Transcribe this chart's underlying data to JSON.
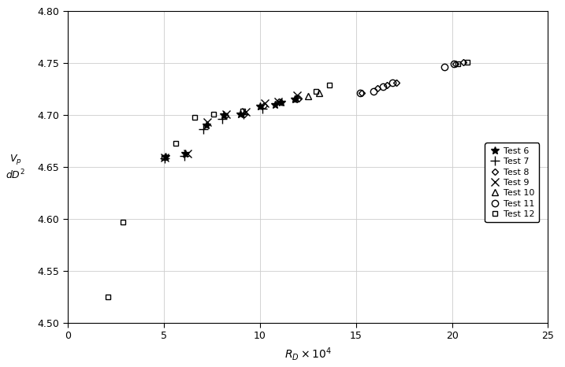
{
  "title": "",
  "xlabel": "$R_D \\times 10^4$",
  "xlim": [
    0,
    25
  ],
  "ylim": [
    4.5,
    4.8
  ],
  "xticks": [
    0,
    5,
    10,
    15,
    20,
    25
  ],
  "yticks": [
    4.5,
    4.55,
    4.6,
    4.65,
    4.7,
    4.75,
    4.8
  ],
  "series": [
    {
      "label": "Test 6",
      "marker": "*",
      "markersize": 7,
      "mfc": "black",
      "mec": "black",
      "x": [
        5.1,
        6.1,
        7.2,
        8.1,
        9.0,
        10.0,
        10.8,
        11.1,
        11.8
      ],
      "y": [
        4.66,
        4.663,
        4.69,
        4.7,
        4.701,
        4.708,
        4.71,
        4.712,
        4.715
      ]
    },
    {
      "label": "Test 7",
      "marker": "+",
      "markersize": 8,
      "mfc": "black",
      "mec": "black",
      "x": [
        5.05,
        6.05,
        7.05,
        8.05,
        9.15,
        10.15
      ],
      "y": [
        4.658,
        4.661,
        4.686,
        4.696,
        4.701,
        4.706
      ]
    },
    {
      "label": "Test 8",
      "marker": "D",
      "markersize": 4,
      "mfc": "none",
      "mec": "black",
      "x": [
        8.2,
        9.2,
        10.2,
        11.0,
        12.0,
        15.3,
        16.1,
        16.6,
        17.1,
        20.2,
        20.6
      ],
      "y": [
        4.699,
        4.701,
        4.709,
        4.713,
        4.716,
        4.721,
        4.726,
        4.729,
        4.731,
        4.749,
        4.751
      ]
    },
    {
      "label": "Test 9",
      "marker": "x",
      "markersize": 7,
      "mfc": "black",
      "mec": "black",
      "x": [
        5.05,
        6.25,
        7.25,
        8.25,
        9.25,
        10.25,
        10.95,
        11.95
      ],
      "y": [
        4.659,
        4.663,
        4.693,
        4.701,
        4.703,
        4.711,
        4.713,
        4.719
      ]
    },
    {
      "label": "Test 10",
      "marker": "^",
      "markersize": 6,
      "mfc": "none",
      "mec": "black",
      "x": [
        11.85,
        12.5,
        13.1
      ],
      "y": [
        4.716,
        4.718,
        4.721
      ]
    },
    {
      "label": "Test 11",
      "marker": "o",
      "markersize": 6,
      "mfc": "none",
      "mec": "black",
      "x": [
        15.2,
        15.9,
        16.4,
        16.9,
        19.6,
        20.1
      ],
      "y": [
        4.721,
        4.723,
        4.727,
        4.731,
        4.746,
        4.749
      ]
    },
    {
      "label": "Test 12",
      "marker": "s",
      "markersize": 5,
      "mfc": "none",
      "mec": "black",
      "x": [
        2.1,
        2.85,
        5.0,
        5.6,
        6.6,
        7.6,
        9.1,
        12.9,
        13.6,
        20.3,
        20.8
      ],
      "y": [
        4.525,
        4.597,
        4.659,
        4.673,
        4.698,
        4.701,
        4.704,
        4.723,
        4.729,
        4.749,
        4.751
      ]
    }
  ],
  "grid_color": "#cccccc",
  "background_color": "#ffffff"
}
